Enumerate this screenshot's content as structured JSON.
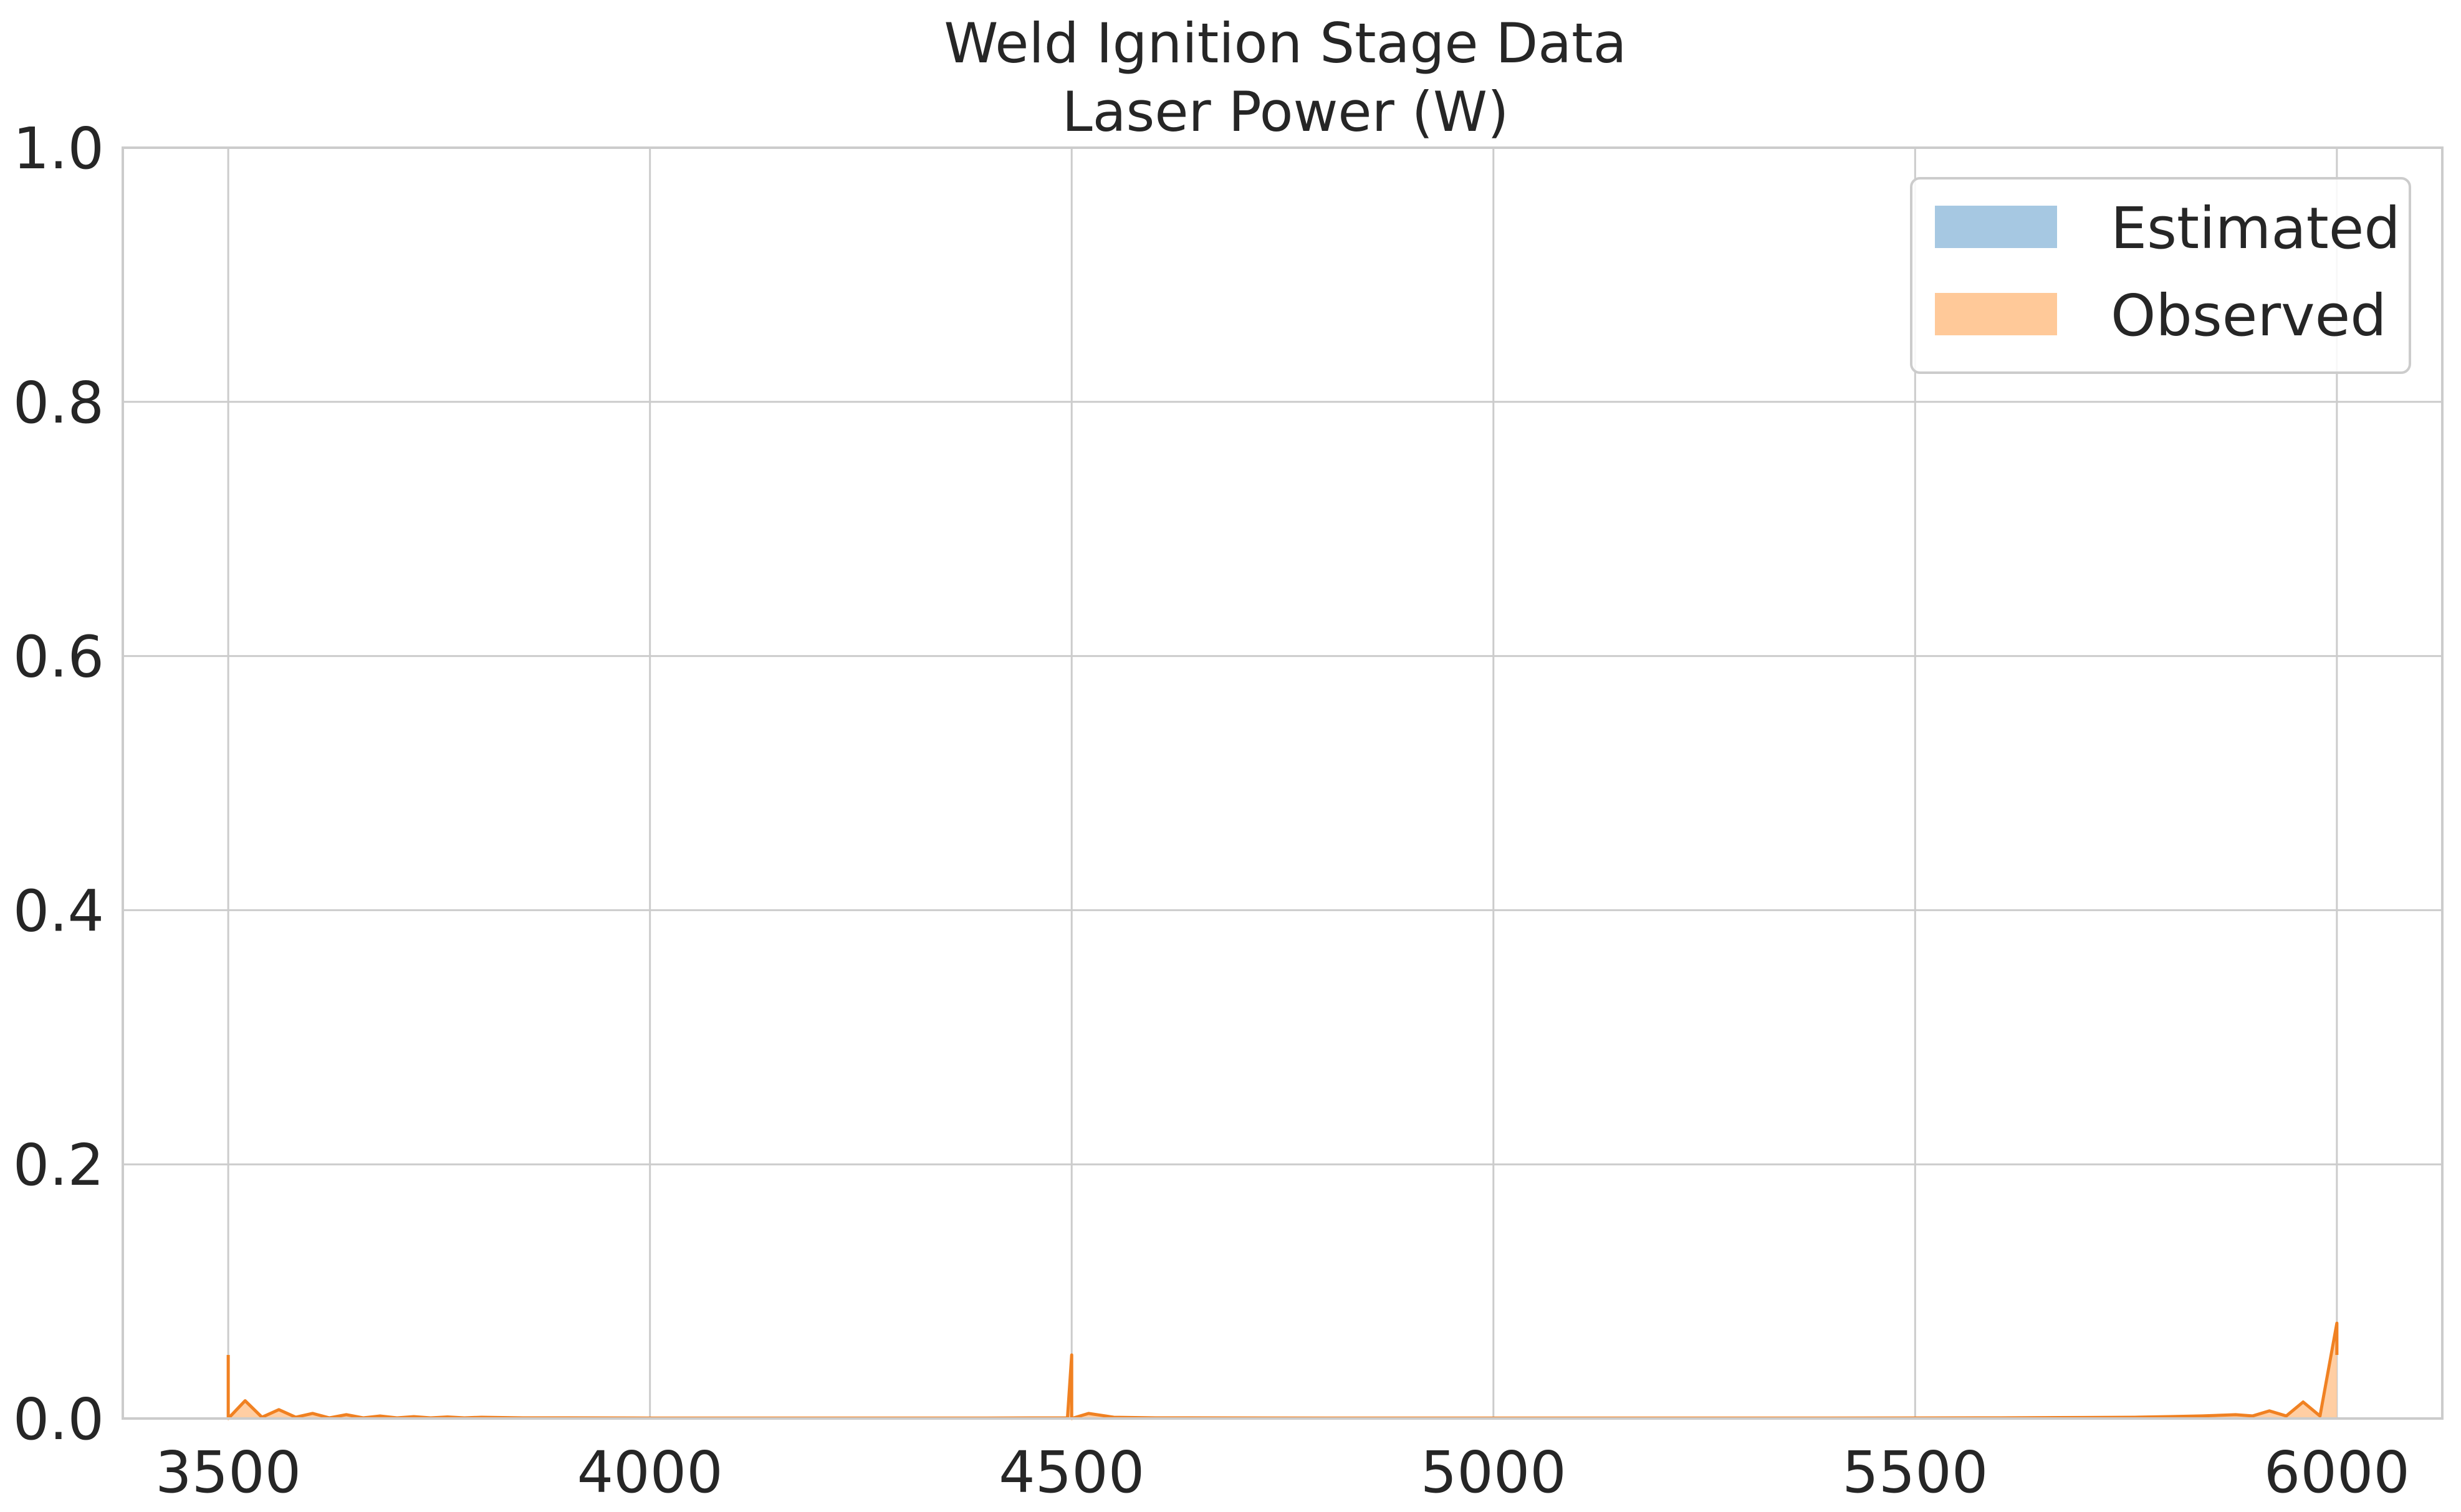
{
  "chart_data": {
    "type": "area",
    "title_lines": [
      "Weld Ignition Stage Data",
      "Laser Power (W)"
    ],
    "xlim": [
      3375,
      6125
    ],
    "ylim": [
      0,
      1.0
    ],
    "x_ticks": [
      3500,
      4000,
      4500,
      5000,
      5500,
      6000
    ],
    "y_ticks": [
      0.0,
      0.2,
      0.4,
      0.6,
      0.8,
      1.0
    ],
    "x_tick_labels": [
      "3500",
      "4000",
      "4500",
      "5000",
      "5500",
      "6000"
    ],
    "y_tick_labels": [
      "0.0",
      "0.2",
      "0.4",
      "0.6",
      "0.8",
      "1.0"
    ],
    "grid": true,
    "legend": {
      "position": "top-right",
      "entries": [
        "Estimated",
        "Observed"
      ]
    },
    "colors": {
      "estimated": "#a6c8e2",
      "observed": "#ffc999",
      "observed_line": "#f08122",
      "grid": "#cccccc",
      "axis": "#cccccc"
    },
    "series": [
      {
        "name": "Estimated",
        "x": [],
        "y": []
      },
      {
        "name": "Observed",
        "x": [
          3500,
          3500,
          3520,
          3540,
          3560,
          3580,
          3600,
          3620,
          3640,
          3660,
          3680,
          3700,
          3720,
          3740,
          3760,
          3780,
          3800,
          3850,
          3900,
          4000,
          4200,
          4400,
          4495,
          4500,
          4500,
          4520,
          4550,
          4600,
          4800,
          5000,
          5200,
          5400,
          5600,
          5700,
          5760,
          5800,
          5840,
          5880,
          5900,
          5920,
          5940,
          5960,
          5980,
          6000,
          6000
        ],
        "y": [
          0.05,
          0.0,
          0.014,
          0.001,
          0.007,
          0.001,
          0.004,
          0.0005,
          0.003,
          0.0005,
          0.002,
          0.0005,
          0.0015,
          0.0005,
          0.0012,
          0.0005,
          0.001,
          0.0005,
          0.0005,
          0.0003,
          0.0003,
          0.0003,
          0.0005,
          0.05,
          0.0,
          0.004,
          0.001,
          0.0005,
          0.0003,
          0.0003,
          0.0003,
          0.0003,
          0.0005,
          0.0008,
          0.001,
          0.0015,
          0.002,
          0.003,
          0.002,
          0.006,
          0.002,
          0.013,
          0.002,
          0.075,
          0.05
        ]
      }
    ]
  }
}
